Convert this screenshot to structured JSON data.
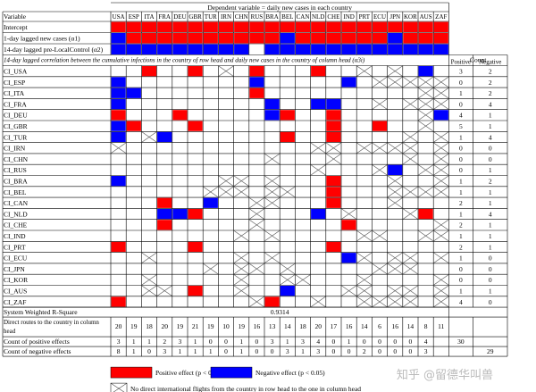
{
  "colors": {
    "positive": "#ff0000",
    "negative": "#0000ff",
    "grid": "#000000"
  },
  "header": {
    "title": "Dependent variable = daily new cases in each country",
    "variable_label": "Variable",
    "count_label": "Count",
    "positive_label": "Positive",
    "negative_label": "Negative"
  },
  "countries": [
    "USA",
    "ESP",
    "ITA",
    "FRA",
    "DEU",
    "GBR",
    "TUR",
    "IRN",
    "CHN",
    "RUS",
    "BRA",
    "BEL",
    "CAN",
    "NLD",
    "CHE",
    "IND",
    "PRT",
    "ECU",
    "JPN",
    "KOR",
    "AUS",
    "ZAF"
  ],
  "top_rows": [
    {
      "label": "Intercept",
      "cells": "RRRRRRRRRRRRRRRRRRRRRR"
    },
    {
      "label": "1-day lagged new cases (α1)",
      "cells": "BRRRRRRRRRRBRRRRRRBRRR"
    },
    {
      "label": "14-day lagged pre-LocalControl (α2)",
      "cells": "BBBBBBBBBWBBBBBBBBBBBB"
    }
  ],
  "section_label": "14-day lagged correlation between the cumulative infections in the country of row head and daily new cases in the country of column head (α3i)",
  "rows": [
    {
      "label": "CI_USA",
      "cells": "..R..R.X.R...R..X.X.B",
      "pos": "3",
      "neg": "2"
    },
    {
      "label": "CI_ESP",
      "cells": "B........B.....B.XXXXX",
      "pos": "0",
      "neg": "2"
    },
    {
      "label": "CI_ITA",
      "cells": "BB.......R..........XX",
      "pos": "1",
      "neg": "2"
    },
    {
      "label": "CI_FRA",
      "cells": "B.........B..BB..X.XXX",
      "pos": "0",
      "neg": "4"
    },
    {
      "label": "CI_DEU",
      "cells": "R...R.....BR..R.....XB",
      "pos": "4",
      "neg": "1"
    },
    {
      "label": "CI_GBR",
      "cells": "BR...R........R..R..X.R",
      "pos": "5",
      "neg": "1"
    },
    {
      "label": "CI_TUR",
      "cells": "B.XB.......R..R....X.XX",
      "pos": "1",
      "neg": "4"
    },
    {
      "label": "CI_IRN",
      "cells": "X............XX.XXXX.XX",
      "pos": "0",
      "neg": "0"
    },
    {
      "label": "CI_CHN",
      "cells": "..........X...X....X.X",
      "pos": "0",
      "neg": "0"
    },
    {
      "label": "CI_RUS",
      "cells": ".............X...XB.XX",
      "pos": "0",
      "neg": "1"
    },
    {
      "label": "CI_BRA",
      "cells": "B......XX.X...R...X..XX",
      "pos": "1",
      "neg": "2"
    },
    {
      "label": "CI_BEL",
      "cells": "......XXX.XX..R...XXXX",
      "pos": "1",
      "neg": "1"
    },
    {
      "label": "CI_CAN",
      "cells": "...R..B..XX...R...X...",
      "pos": "2",
      "neg": "1"
    },
    {
      "label": "CI_NLD",
      "cells": "...BBR...X...B.X...XR",
      "pos": "1",
      "neg": "4"
    },
    {
      "label": "CI_CHE",
      "cells": "...R.....X.....R.....XR",
      "pos": "2",
      "neg": "1"
    },
    {
      "label": "CI_IND",
      "cells": "........X.X.....XX..XX.R",
      "pos": "1",
      "neg": "1"
    },
    {
      "label": "CI_PRT",
      "cells": "R....R........R.......",
      "pos": "2",
      "neg": "1"
    },
    {
      "label": "CI_ECU",
      "cells": "..X.....X.X....BX.XX.XX",
      "pos": "1",
      "neg": "0"
    },
    {
      "label": "CI_JPN",
      "cells": "......X.XX.X.....XXX..",
      "pos": "0",
      "neg": "0"
    },
    {
      "label": "CI_KOR",
      "cells": "..X.....X..XX...X....XX",
      "pos": "0",
      "neg": "0"
    },
    {
      "label": "CI_AUS",
      "cells": "..XX.R..X..B...XX.XX.XX",
      "pos": "1",
      "neg": "1"
    },
    {
      "label": "CI_ZAF",
      "cells": "R........XR..X..XXXX.XX",
      "pos": "4",
      "neg": "0"
    }
  ],
  "system_r2": {
    "label": "System Weighted R-Square",
    "value": "0.9314"
  },
  "routes": {
    "label": "Direct routes to the country in column head",
    "values": [
      "20",
      "19",
      "18",
      "20",
      "19",
      "21",
      "19",
      "10",
      "19",
      "16",
      "13",
      "14",
      "18",
      "20",
      "17",
      "16",
      "14",
      "6",
      "16",
      "14",
      "8",
      "11"
    ]
  },
  "positive_counts": {
    "label": "Count of positive effects",
    "values": [
      "3",
      "1",
      "1",
      "2",
      "3",
      "1",
      "0",
      "0",
      "1",
      "0",
      "3",
      "1",
      "3",
      "4",
      "0",
      "1",
      "0",
      "0",
      "0",
      "0",
      "4",
      ""
    ],
    "total": "30"
  },
  "negative_counts": {
    "label": "Count of negative effects",
    "values": [
      "8",
      "1",
      "0",
      "3",
      "1",
      "1",
      "1",
      "0",
      "1",
      "0",
      "0",
      "3",
      "1",
      "3",
      "0",
      "0",
      "2",
      "0",
      "0",
      "0",
      "3",
      ""
    ],
    "total": "29"
  },
  "legend": {
    "positive": "Positive effect (p < 0.05)",
    "negative": "Negative effect (p < 0.05)",
    "nodirect": "No direct international flights from the country in row head to the one in column head"
  },
  "watermark": "知乎 @留德华叫兽"
}
